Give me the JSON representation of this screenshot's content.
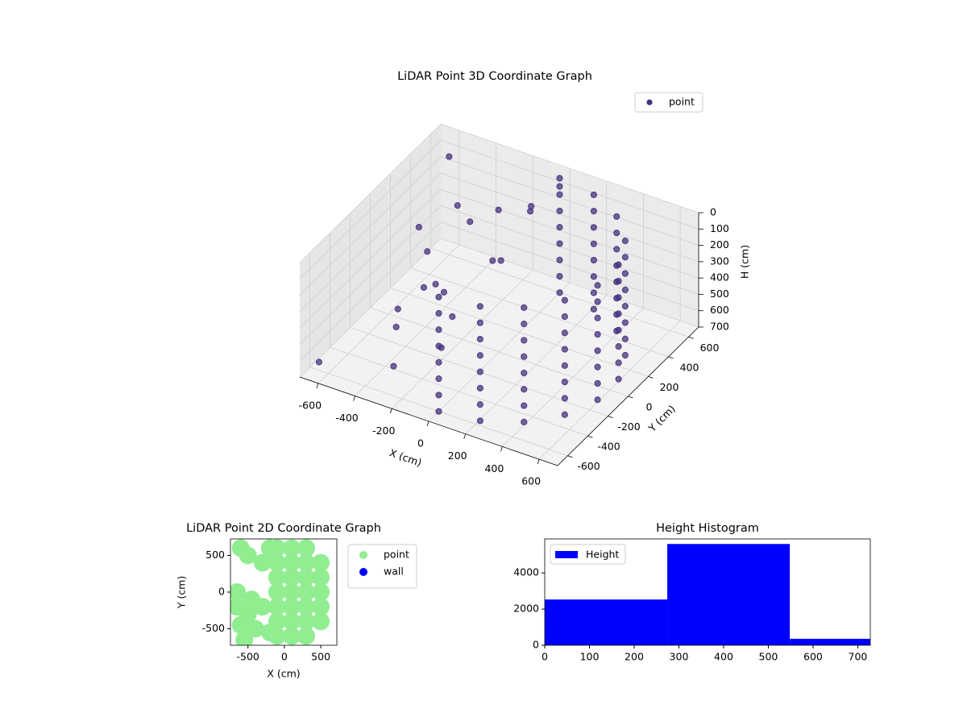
{
  "chart_data": [
    {
      "type": "scatter3d",
      "title": "LiDAR Point 3D Coordinate Graph",
      "xlabel": "X (cm)",
      "ylabel": "Y (cm)",
      "zlabel": "H (cm)",
      "xlim": [
        -700,
        700
      ],
      "ylim": [
        -700,
        700
      ],
      "zlim": [
        700,
        0
      ],
      "xticks": [
        -600,
        -400,
        -200,
        0,
        200,
        400,
        600
      ],
      "yticks": [
        -600,
        -400,
        -200,
        0,
        200,
        400,
        600
      ],
      "zticks": [
        0,
        100,
        200,
        300,
        400,
        500,
        600,
        700
      ],
      "grid": true,
      "legend": "upper right",
      "series": [
        {
          "name": "point",
          "color": "#46327e",
          "x": [
            0,
            0,
            0,
            0,
            0,
            0,
            0,
            0,
            205,
            205,
            205,
            205,
            205,
            205,
            205,
            205,
            386,
            386,
            386,
            386,
            386,
            386,
            386,
            386,
            520,
            520,
            520,
            520,
            520,
            520,
            520,
            520,
            591,
            591,
            591,
            591,
            591,
            591,
            591,
            591,
            591,
            591,
            591,
            591,
            591,
            591,
            591,
            591,
            520,
            520,
            520,
            520,
            520,
            520,
            520,
            520,
            386,
            386,
            386,
            386,
            386,
            386,
            386,
            386,
            205,
            205,
            205,
            205,
            205,
            205,
            205,
            205,
            0,
            0,
            0,
            0,
            0,
            0,
            0,
            0,
            -650,
            -300,
            -600,
            -500,
            -400,
            -300,
            -200,
            -100,
            -350,
            -250,
            -150,
            -450,
            -550,
            -50,
            -100,
            0,
            -600,
            -500,
            -200,
            -300
          ],
          "y": [
            -600,
            -600,
            -600,
            -600,
            -600,
            -600,
            -600,
            -600,
            -564,
            -564,
            -564,
            -564,
            -564,
            -564,
            -564,
            -564,
            -460,
            -460,
            -460,
            -460,
            -460,
            -460,
            -460,
            -460,
            -300,
            -300,
            -300,
            -300,
            -300,
            -300,
            -300,
            -300,
            -104,
            -104,
            -104,
            -104,
            -104,
            -104,
            -104,
            -104,
            104,
            104,
            104,
            104,
            104,
            104,
            104,
            104,
            300,
            300,
            300,
            300,
            300,
            300,
            300,
            300,
            460,
            460,
            460,
            460,
            460,
            460,
            460,
            460,
            564,
            564,
            564,
            564,
            564,
            564,
            564,
            564,
            600,
            600,
            600,
            600,
            600,
            600,
            600,
            600,
            -600,
            -500,
            300,
            200,
            100,
            0,
            -100,
            200,
            350,
            450,
            -300,
            -200,
            0,
            400,
            500,
            600,
            600,
            500,
            300,
            -200
          ],
          "z": [
            0,
            100,
            200,
            300,
            400,
            500,
            600,
            700,
            0,
            100,
            200,
            300,
            400,
            500,
            600,
            700,
            0,
            100,
            200,
            300,
            400,
            500,
            600,
            700,
            0,
            100,
            200,
            300,
            400,
            500,
            600,
            700,
            0,
            100,
            200,
            300,
            400,
            500,
            600,
            700,
            0,
            100,
            200,
            300,
            400,
            500,
            600,
            700,
            0,
            100,
            200,
            300,
            400,
            500,
            600,
            700,
            0,
            100,
            200,
            300,
            400,
            500,
            600,
            700,
            0,
            100,
            200,
            300,
            400,
            500,
            600,
            700,
            0,
            100,
            200,
            300,
            400,
            500,
            600,
            700,
            650,
            600,
            350,
            400,
            500,
            450,
            500,
            300,
            250,
            200,
            550,
            600,
            650,
            100,
            150,
            50,
            100,
            300,
            400,
            300
          ]
        }
      ]
    },
    {
      "type": "scatter",
      "title": "LiDAR Point 2D Coordinate Graph",
      "xlabel": "X (cm)",
      "ylabel": "Y (cm)",
      "xlim": [
        -740,
        720
      ],
      "ylim": [
        -725,
        725
      ],
      "xticks": [
        -500,
        0,
        500
      ],
      "yticks": [
        -500,
        0,
        500
      ],
      "legend": "outside",
      "series": [
        {
          "name": "point",
          "color": "#90ee90",
          "x": [
            -100,
            -100,
            -100,
            -100,
            -100,
            -100,
            -100,
            100,
            100,
            100,
            100,
            100,
            100,
            100,
            300,
            300,
            300,
            300,
            300,
            300,
            300,
            500,
            500,
            500,
            500,
            500,
            -600,
            -500,
            -650,
            -500,
            -400,
            -600,
            -300,
            -450,
            -650,
            -200,
            -300,
            -550,
            -200
          ],
          "y": [
            -600,
            -400,
            -200,
            0,
            200,
            400,
            600,
            -600,
            -400,
            -200,
            0,
            200,
            400,
            600,
            -600,
            -400,
            -200,
            0,
            200,
            400,
            600,
            -400,
            -200,
            0,
            200,
            400,
            600,
            500,
            -200,
            -300,
            -500,
            -450,
            -200,
            -100,
            0,
            600,
            400,
            -650,
            -550
          ]
        },
        {
          "name": "wall",
          "color": "#0000ff",
          "x": [],
          "y": []
        }
      ]
    },
    {
      "type": "histogram",
      "title": "Height Histogram",
      "bins": [
        0,
        274,
        548,
        728
      ],
      "series": [
        {
          "name": "Height",
          "color": "#0000ff",
          "values": [
            2530,
            5600,
            356
          ]
        }
      ],
      "xlim": [
        0,
        728
      ],
      "ylim": [
        0,
        5880
      ],
      "xticks": [
        0,
        100,
        200,
        300,
        400,
        500,
        600,
        700
      ],
      "yticks": [
        0,
        2000,
        4000
      ],
      "legend": "upper left"
    }
  ]
}
